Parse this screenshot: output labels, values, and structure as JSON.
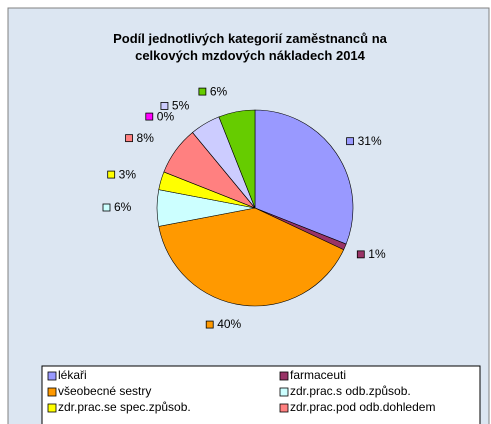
{
  "chart_data": {
    "type": "pie",
    "title": "Podíl jednotlivých kategorií zaměstnanců na celkových mzdových nákladech 2014",
    "categories": [
      "lékaři",
      "farmaceuti",
      "všeobecné sestry",
      "zdr.prac.s odb.způsob.",
      "zdr.prac.se spec.způsob.",
      "zdr.prac.pod odb.dohledem",
      null,
      null,
      null
    ],
    "values": [
      31,
      1,
      40,
      6,
      3,
      8,
      0,
      5,
      6
    ],
    "value_labels": [
      "31%",
      "1%",
      "40%",
      "6%",
      "3%",
      "8%",
      "0%",
      "5%",
      "6%"
    ],
    "colors": [
      "#9999ff",
      "#993366",
      "#ff9900",
      "#ccffff",
      "#ffff00",
      "#ff8080",
      "#ff00ff",
      "#ccccff",
      "#66cc00"
    ]
  }
}
